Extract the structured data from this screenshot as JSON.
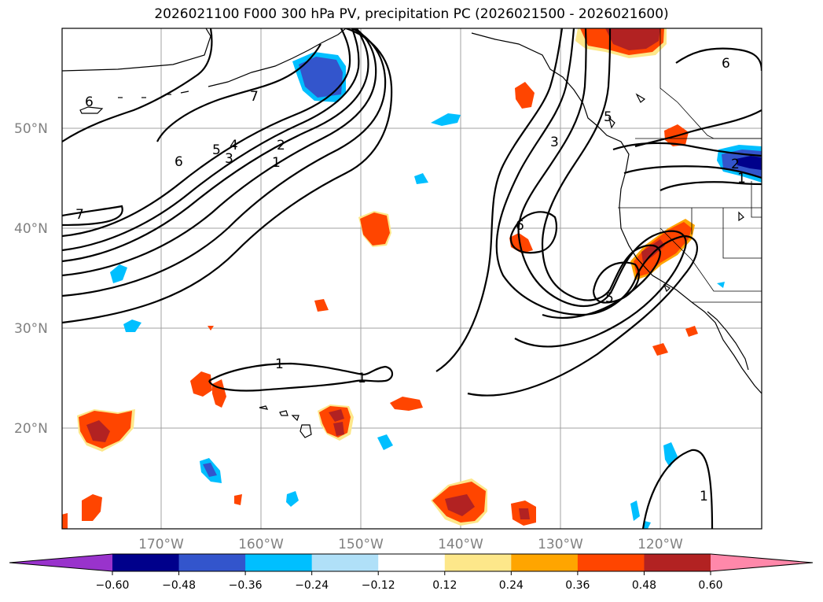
{
  "title": "2026021100 F000 300 hPa PV, precipitation PC (2026021500 - 2026021600)",
  "colors": {
    "grid": "#a0a0a0",
    "axis_label": "#808080",
    "contour": "#000000"
  },
  "lat_labels": [
    "50°N",
    "40°N",
    "30°N",
    "20°N"
  ],
  "lon_labels": [
    "170°W",
    "160°W",
    "150°W",
    "140°W",
    "130°W",
    "120°W"
  ],
  "colorbar": {
    "ticks": [
      "−0.60",
      "−0.48",
      "−0.36",
      "−0.24",
      "−0.12",
      "0.12",
      "0.24",
      "0.36",
      "0.48",
      "0.60"
    ],
    "colors": [
      "#9933cc",
      "#00008b",
      "#3355cc",
      "#00bfff",
      "#b0e0f8",
      "#ffffff",
      "#fde78a",
      "#ffa500",
      "#ff4500",
      "#b22222",
      "#ff88aa"
    ]
  },
  "contour_labels": [
    "6",
    "7",
    "6",
    "5",
    "4",
    "3",
    "2",
    "1",
    "7",
    "1",
    "1",
    "3",
    "5",
    "6",
    "5",
    "6",
    "2",
    "1",
    "1"
  ],
  "fill_colors": {
    "pos_low": "#fde78a",
    "pos_mid": "#ffa500",
    "pos_high": "#ff4500",
    "pos_max": "#b22222",
    "neg_low": "#00bfff",
    "neg_mid": "#3355cc",
    "neg_max": "#00008b"
  }
}
